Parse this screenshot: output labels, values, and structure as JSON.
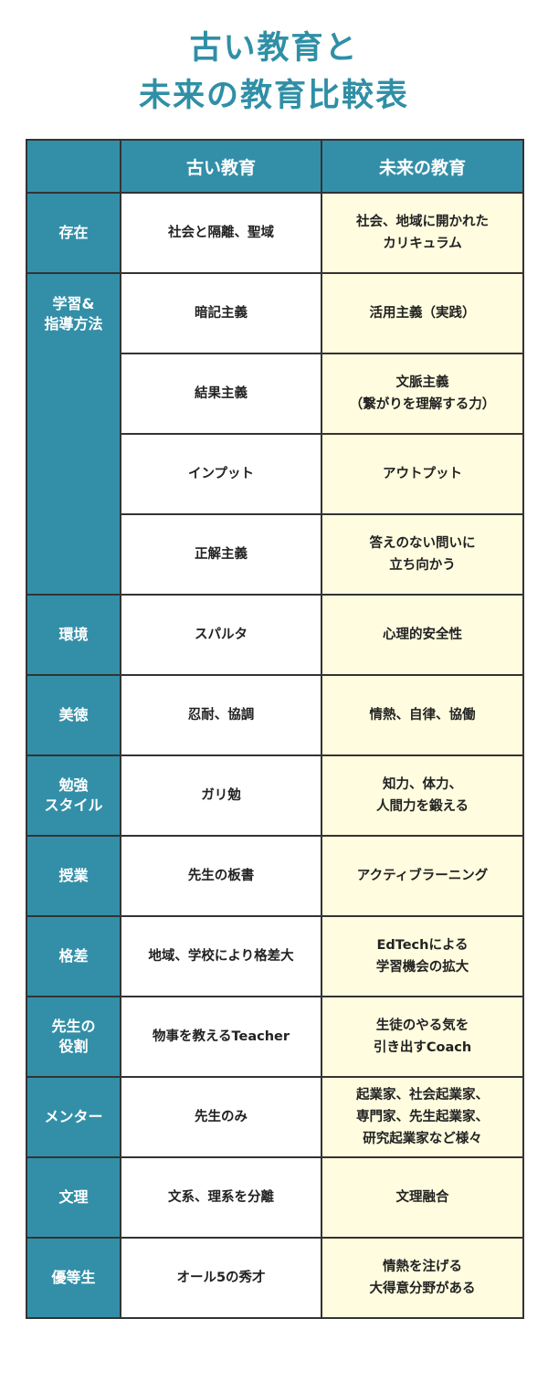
{
  "title": {
    "line1": "古い教育と",
    "line2": "未来の教育比較表"
  },
  "colors": {
    "header": "#338fa8",
    "title": "#2f8fa6",
    "future_bg": "#fffcdf"
  },
  "table": {
    "headers": [
      "",
      "古い教育",
      "未来の教育"
    ],
    "rows": [
      {
        "category": "存在",
        "old": "社会と隔離、聖域",
        "new": "社会、地域に開かれた\nカリキュラム"
      },
      {
        "category": "学習&\n指導方法",
        "old": "暗記主義",
        "new": "活用主義（実践）"
      },
      {
        "category": "",
        "old": "結果主義",
        "new": "文脈主義\n（繋がりを理解する力）"
      },
      {
        "category": "",
        "old": "インプット",
        "new": "アウトプット"
      },
      {
        "category": "",
        "old": "正解主義",
        "new": "答えのない問いに\n立ち向かう"
      },
      {
        "category": "環境",
        "old": "スパルタ",
        "new": "心理的安全性"
      },
      {
        "category": "美徳",
        "old": "忍耐、協調",
        "new": "情熱、自律、協働"
      },
      {
        "category": "勉強\nスタイル",
        "old": "ガリ勉",
        "new": "知力、体力、\n人間力を鍛える"
      },
      {
        "category": "授業",
        "old": "先生の板書",
        "new": "アクティブラーニング"
      },
      {
        "category": "格差",
        "old": "地域、学校により格差大",
        "new": "EdTechによる\n学習機会の拡大"
      },
      {
        "category": "先生の\n役割",
        "old": "物事を教えるTeacher",
        "new": "生徒のやる気を\n引き出すCoach"
      },
      {
        "category": "メンター",
        "old": "先生のみ",
        "new": "起業家、社会起業家、\n専門家、先生起業家、\n研究起業家など様々"
      },
      {
        "category": "文理",
        "old": "文系、理系を分離",
        "new": "文理融合"
      },
      {
        "category": "優等生",
        "old": "オール5の秀才",
        "new": "情熱を注げる\n大得意分野がある"
      }
    ]
  }
}
